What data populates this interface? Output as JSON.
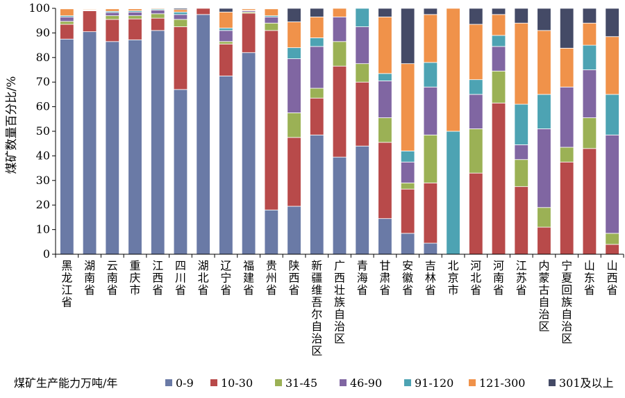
{
  "chart_data": {
    "type": "bar",
    "stacked": true,
    "ylabel": "煤矿数量百分比/%",
    "ylim": [
      0,
      100
    ],
    "yticks": [
      0,
      10,
      20,
      30,
      40,
      50,
      60,
      70,
      80,
      90,
      100
    ],
    "grid": false,
    "legend_title": "煤矿生产能力万吨/年",
    "legend_position": "bottom",
    "categories": [
      "黑龙江省",
      "湖南省",
      "云南省",
      "重庆市",
      "江西省",
      "四川省",
      "湖北省",
      "辽宁省",
      "福建省",
      "贵州省",
      "陕西省",
      "新疆维吾尔自治区",
      "广西壮族自治区",
      "青海省",
      "甘肃省",
      "安徽省",
      "吉林省",
      "北京市",
      "河北省",
      "河南省",
      "江苏省",
      "内蒙古自治区",
      "宁夏回族自治区",
      "山东省",
      "山西省"
    ],
    "series": [
      {
        "name": "0-9",
        "color": "#6a7aa6",
        "values": [
          87.5,
          90.5,
          86.5,
          87.2,
          91.0,
          67.0,
          97.5,
          72.5,
          82.0,
          18.0,
          19.5,
          48.5,
          39.5,
          44.0,
          14.5,
          8.5,
          4.5,
          0.0,
          0.0,
          0.0,
          0.0,
          0.0,
          0.0,
          0.0,
          0.0
        ]
      },
      {
        "name": "10-30",
        "color": "#b84a4a",
        "values": [
          6.0,
          8.5,
          9.0,
          8.5,
          5.0,
          25.5,
          2.5,
          13.0,
          16.0,
          73.0,
          28.0,
          15.0,
          37.0,
          26.0,
          31.0,
          18.0,
          24.5,
          0.0,
          33.0,
          61.5,
          27.5,
          11.0,
          37.5,
          43.0,
          4.0
        ]
      },
      {
        "name": "31-45",
        "color": "#9bb155",
        "values": [
          1.2,
          0.2,
          1.5,
          1.3,
          1.8,
          3.0,
          0.0,
          1.0,
          0.5,
          3.0,
          10.0,
          4.0,
          10.0,
          7.5,
          10.0,
          2.5,
          19.5,
          0.0,
          18.0,
          13.0,
          11.0,
          8.0,
          6.0,
          12.5,
          4.5
        ]
      },
      {
        "name": "46-90",
        "color": "#8066a2",
        "values": [
          1.8,
          0.2,
          1.3,
          1.5,
          1.5,
          2.0,
          0.0,
          4.5,
          0.5,
          2.5,
          22.0,
          17.0,
          10.0,
          15.0,
          15.0,
          8.5,
          19.5,
          0.0,
          14.0,
          10.0,
          6.0,
          32.0,
          24.5,
          19.5,
          40.0
        ]
      },
      {
        "name": "91-120",
        "color": "#4da3b3",
        "values": [
          0.5,
          0.1,
          0.5,
          0.5,
          0.4,
          1.0,
          0.0,
          1.0,
          0.2,
          0.5,
          4.5,
          3.5,
          0.0,
          7.5,
          3.0,
          4.5,
          10.0,
          50.0,
          6.0,
          4.5,
          16.5,
          14.0,
          0.0,
          10.0,
          16.5
        ]
      },
      {
        "name": "121-300",
        "color": "#f0924a",
        "values": [
          2.8,
          0.3,
          1.0,
          0.8,
          0.3,
          1.0,
          0.0,
          6.5,
          0.6,
          2.8,
          10.5,
          8.5,
          3.5,
          0.0,
          23.0,
          35.5,
          19.5,
          50.0,
          22.5,
          8.5,
          33.0,
          26.0,
          15.8,
          9.0,
          23.5
        ]
      },
      {
        "name": "301及以上",
        "color": "#444a66",
        "values": [
          0.2,
          0.2,
          0.2,
          0.2,
          0.0,
          0.5,
          0.0,
          1.5,
          0.2,
          0.2,
          5.5,
          3.5,
          0.0,
          0.0,
          3.5,
          22.5,
          2.5,
          0.0,
          6.5,
          2.5,
          6.0,
          9.0,
          16.2,
          6.0,
          11.5
        ]
      }
    ]
  }
}
